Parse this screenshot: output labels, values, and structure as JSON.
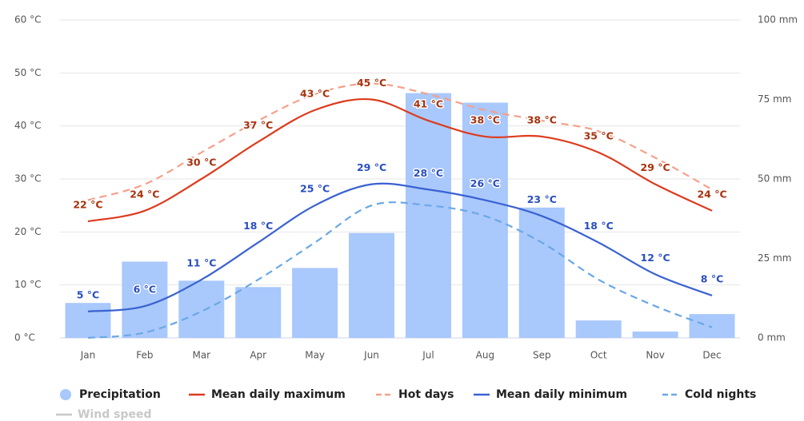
{
  "chart_data": {
    "type": "combo",
    "categories": [
      "Jan",
      "Feb",
      "Mar",
      "Apr",
      "May",
      "Jun",
      "Jul",
      "Aug",
      "Sep",
      "Oct",
      "Nov",
      "Dec"
    ],
    "ylim": [
      0,
      60
    ],
    "yticks": [
      {
        "value": 0,
        "label": "0 °C"
      },
      {
        "value": 10,
        "label": "10 °C"
      },
      {
        "value": 20,
        "label": "20 °C"
      },
      {
        "value": 30,
        "label": "30 °C"
      },
      {
        "value": 40,
        "label": "40 °C"
      },
      {
        "value": 50,
        "label": "50 °C"
      },
      {
        "value": 60,
        "label": "60 °C"
      }
    ],
    "y2lim": [
      0,
      100
    ],
    "y2ticks": [
      {
        "value": 0,
        "label": "0 mm"
      },
      {
        "value": 25,
        "label": "25 mm"
      },
      {
        "value": 50,
        "label": "50 mm"
      },
      {
        "value": 75,
        "label": "75 mm"
      },
      {
        "value": 100,
        "label": "100 mm"
      }
    ],
    "grid": true,
    "series": [
      {
        "name": "Precipitation",
        "type": "bar",
        "axis": "y2",
        "color": "#a9c8fc",
        "values": [
          11,
          24,
          18,
          16,
          22,
          33,
          77,
          74,
          41,
          5.5,
          2,
          7.5
        ]
      },
      {
        "name": "Mean daily maximum",
        "type": "line",
        "color": "#dc3c1e",
        "label_color": "#a8320e",
        "values": [
          22,
          24,
          30,
          37,
          43,
          45,
          41,
          38,
          38,
          35,
          29,
          24
        ],
        "value_labels": [
          "22 °C",
          "24 °C",
          "30 °C",
          "37 °C",
          "43 °C",
          "45 °C",
          "41 °C",
          "38 °C",
          "38 °C",
          "35 °C",
          "29 °C",
          "24 °C"
        ]
      },
      {
        "name": "Hot days",
        "type": "line",
        "dashed": true,
        "color": "#f5a08c",
        "values": [
          26,
          29,
          35,
          41,
          46,
          48,
          46,
          43,
          41,
          39,
          34,
          28
        ]
      },
      {
        "name": "Mean daily minimum",
        "type": "line",
        "color": "#3a62d0",
        "label_color": "#2a4fc0",
        "values": [
          5,
          6,
          11,
          18,
          25,
          29,
          28,
          26,
          23,
          18,
          12,
          8
        ],
        "value_labels": [
          "5 °C",
          "6 °C",
          "11 °C",
          "18 °C",
          "25 °C",
          "29 °C",
          "28 °C",
          "26 °C",
          "23 °C",
          "18 °C",
          "12 °C",
          "8 °C"
        ]
      },
      {
        "name": "Cold nights",
        "type": "line",
        "dashed": true,
        "color": "#6aa8e6",
        "values": [
          0,
          1,
          5,
          11,
          18,
          25,
          25,
          23,
          18,
          11,
          6,
          2
        ]
      }
    ],
    "hidden_series": [
      {
        "name": "Wind speed",
        "color": "#c8c8c8"
      }
    ]
  }
}
